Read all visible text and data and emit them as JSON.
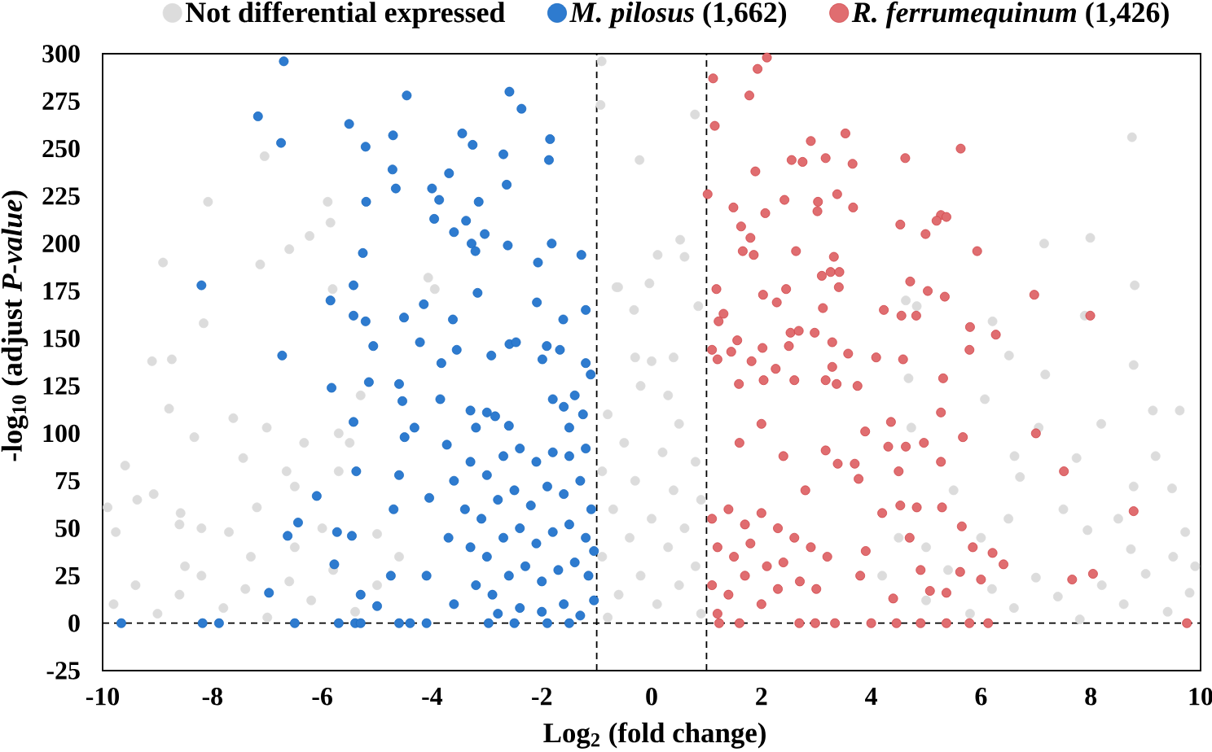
{
  "chart_data": {
    "type": "scatter",
    "xlabel": "Log$_{2}$ (fold change)",
    "ylabel": "-log$_{10}$ (adjust *P-value*)",
    "xlim": [
      -10,
      10
    ],
    "ylim": [
      -25,
      300
    ],
    "xticks": [
      -10,
      -8,
      -6,
      -4,
      -2,
      0,
      2,
      4,
      6,
      8,
      10
    ],
    "yticks": [
      -25,
      0,
      25,
      50,
      75,
      100,
      125,
      150,
      175,
      200,
      225,
      250,
      275,
      300
    ],
    "legend": "top",
    "marker": "circle",
    "ref_lines": [
      {
        "axis": "x",
        "value": -1,
        "line_style": "dashed",
        "color": "#000000"
      },
      {
        "axis": "x",
        "value": 1,
        "line_style": "dashed",
        "color": "#000000"
      },
      {
        "axis": "y",
        "value": 0,
        "line_style": "dashed",
        "color": "#000000"
      }
    ],
    "series": [
      {
        "name": "Not differential expressed",
        "color": "#dcdcdc",
        "x": [
          -0.91,
          -0.93,
          -0.64,
          -7.05,
          -8.08,
          -5.9,
          -5.85,
          -6.23,
          -6.6,
          -7.13,
          -8.9,
          -4.07,
          -3.95,
          -5.81,
          -8.16,
          -9.1,
          -8.74,
          8.75,
          0.79,
          -0.22,
          7.15,
          7.99,
          8.8,
          0.52,
          0.11,
          0.6,
          -0.04,
          -0.61,
          -0.32,
          0.85,
          6.21,
          7.89,
          4.63,
          4.83,
          4.68,
          7.17,
          8.78,
          6.51,
          -0.3,
          0.0,
          0.4,
          -0.2,
          0.3,
          -8.79,
          -7.62,
          -7.01,
          -8.33,
          -6.33,
          -7.44,
          -9.59,
          -6.65,
          -6.5,
          -9.07,
          -9.37,
          -9.91,
          -7.19,
          -8.58,
          -8.6,
          -8.2,
          -7.7,
          -9.76,
          -5.7,
          -5.5,
          -5.7,
          -6.0,
          -5.0,
          -5.3,
          -7.3,
          -8.5,
          -6.5,
          9.13,
          9.62,
          8.19,
          8.78,
          9.48,
          9.18,
          7.74,
          6.61,
          6.71,
          7.05,
          6.07,
          4.73,
          7.94,
          8.73,
          9.72,
          5.5,
          6.5,
          7.5,
          8.5,
          9.5,
          5.0,
          6.0,
          -0.8,
          0.5,
          -0.5,
          0.2,
          0.8,
          -0.9,
          -0.3,
          0.4,
          0.9,
          -0.7,
          0.0,
          0.6,
          -0.4,
          0.3,
          -0.9,
          0.8,
          -0.2,
          0.5,
          -0.6,
          0.1,
          0.9,
          -0.8,
          -9.8,
          -9.4,
          -9.0,
          -8.6,
          -8.2,
          -7.8,
          -7.4,
          -7.0,
          -6.6,
          -6.2,
          -5.8,
          -5.4,
          -5.0,
          -4.6,
          5.0,
          5.4,
          5.8,
          6.2,
          6.6,
          7.0,
          7.4,
          7.8,
          8.2,
          8.6,
          9.0,
          9.4,
          9.8,
          9.9,
          4.5,
          4.2
        ],
        "values": [
          296,
          273,
          177,
          246,
          222,
          222,
          211,
          204,
          197,
          189,
          190,
          182,
          176,
          176,
          158,
          138,
          139,
          256,
          268,
          244,
          200,
          203,
          178,
          202,
          194,
          193,
          179,
          177,
          165,
          167,
          159,
          162,
          170,
          167,
          129,
          131,
          136,
          141,
          140,
          138,
          140,
          125,
          120,
          113,
          108,
          103,
          98,
          95,
          87,
          83,
          80,
          72,
          68,
          65,
          61,
          61,
          58,
          52,
          50,
          48,
          48,
          100,
          95,
          80,
          50,
          47,
          120,
          35,
          30,
          40,
          112,
          112,
          105,
          72,
          71,
          88,
          87,
          88,
          77,
          103,
          118,
          103,
          49,
          39,
          48,
          70,
          55,
          60,
          55,
          35,
          40,
          45,
          110,
          105,
          95,
          90,
          85,
          80,
          75,
          70,
          65,
          60,
          55,
          50,
          45,
          40,
          35,
          30,
          25,
          20,
          15,
          10,
          5,
          3,
          10,
          20,
          5,
          15,
          25,
          8,
          18,
          3,
          22,
          12,
          28,
          6,
          20,
          35,
          12,
          28,
          5,
          18,
          8,
          24,
          14,
          2,
          20,
          10,
          26,
          6,
          16,
          30,
          45,
          25
        ]
      },
      {
        "name": "*M. pilosus* (1,662)",
        "color": "#2e7bcf",
        "x": [
          -6.7,
          -7.17,
          -6.75,
          -4.46,
          -5.51,
          -5.21,
          -4.71,
          -4.72,
          -4.66,
          -5.2,
          -5.26,
          -8.2,
          -5.85,
          -5.43,
          -5.43,
          -5.21,
          -5.07,
          -6.73,
          -4.51,
          -4.15,
          -4.22,
          -4.0,
          -3.87,
          -3.96,
          -3.69,
          -3.45,
          -3.26,
          -2.59,
          -2.37,
          -2.7,
          -1.85,
          -1.87,
          -2.64,
          -3.15,
          -3.38,
          -3.6,
          -3.04,
          -3.28,
          -3.21,
          -2.62,
          -1.82,
          -2.07,
          -1.28,
          -3.17,
          -2.09,
          -3.62,
          -1.61,
          -1.2,
          -2.59,
          -2.47,
          -1.91,
          -1.67,
          -3.55,
          -3.83,
          -2.92,
          -1.99,
          -1.2,
          -1.11,
          -5.83,
          -5.15,
          -4.6,
          -5.43,
          -4.54,
          -3.85,
          -4.32,
          -4.5,
          -3.73,
          -3.3,
          -3.0,
          -3.2,
          -2.85,
          -2.6,
          -1.8,
          -1.6,
          -1.4,
          -1.25,
          -1.5,
          -5.38,
          -6.1,
          -6.44,
          -6.63,
          -5.73,
          -5.46,
          -5.78,
          -6.97,
          -5.3,
          -5.0,
          -4.75,
          -4.6,
          -4.7,
          -4.05,
          -4.1,
          -3.6,
          -9.66,
          -8.18,
          -7.88,
          -6.5,
          -5.7,
          -5.4,
          -5.3,
          -4.6,
          -4.4,
          -4.1,
          -2.97,
          -2.5,
          -1.9,
          -1.5,
          -3.3,
          -3.0,
          -2.7,
          -2.4,
          -2.1,
          -1.8,
          -1.5,
          -1.2,
          -3.4,
          -3.1,
          -2.8,
          -2.5,
          -2.2,
          -1.9,
          -1.6,
          -1.3,
          -1.1,
          -3.3,
          -3.0,
          -2.7,
          -2.4,
          -2.1,
          -1.8,
          -1.5,
          -1.2,
          -1.05,
          -3.2,
          -2.9,
          -2.6,
          -2.3,
          -2.0,
          -1.7,
          -1.4,
          -1.15,
          -1.05,
          -2.8,
          -2.4,
          -2.0,
          -1.6,
          -1.3,
          -3.7,
          -3.6
        ],
        "values": [
          296,
          267,
          253,
          278,
          263,
          251,
          257,
          239,
          229,
          222,
          195,
          178,
          170,
          178,
          162,
          159,
          146,
          141,
          161,
          168,
          148,
          229,
          223,
          213,
          237,
          258,
          252,
          280,
          271,
          247,
          255,
          244,
          231,
          222,
          212,
          206,
          205,
          200,
          196,
          199,
          200,
          190,
          194,
          174,
          169,
          160,
          160,
          165,
          147,
          148,
          146,
          144,
          144,
          137,
          141,
          139,
          137,
          131,
          124,
          127,
          126,
          106,
          117,
          118,
          103,
          98,
          94,
          112,
          111,
          103,
          109,
          104,
          118,
          114,
          120,
          110,
          103,
          80,
          67,
          53,
          46,
          48,
          46,
          31,
          16,
          15,
          9,
          25,
          78,
          60,
          66,
          25,
          10,
          0,
          0,
          0,
          0,
          0,
          0,
          0,
          0,
          0,
          0,
          0,
          0,
          0,
          0,
          85,
          78,
          88,
          92,
          85,
          90,
          88,
          92,
          60,
          55,
          65,
          70,
          62,
          72,
          68,
          75,
          60,
          40,
          35,
          45,
          50,
          42,
          48,
          52,
          45,
          38,
          20,
          15,
          25,
          30,
          22,
          28,
          32,
          25,
          12,
          5,
          8,
          6,
          10,
          4,
          45,
          75
        ]
      },
      {
        "name": "*R. ferrumequinum* (1,426)",
        "color": "#e06d70",
        "x": [
          2.1,
          1.93,
          1.12,
          1.78,
          1.15,
          2.9,
          3.53,
          5.63,
          4.62,
          2.55,
          2.75,
          3.17,
          3.66,
          1.89,
          1.02,
          1.49,
          2.42,
          3.03,
          3.02,
          3.38,
          3.67,
          2.07,
          1.63,
          1.8,
          1.66,
          1.86,
          2.63,
          3.32,
          3.1,
          3.26,
          3.42,
          3.41,
          4.53,
          4.99,
          5.27,
          5.19,
          5.37,
          5.93,
          4.71,
          5.03,
          5.34,
          6.97,
          7.99,
          1.18,
          2.03,
          2.28,
          2.45,
          3.12,
          4.23,
          4.55,
          4.82,
          1.31,
          1.22,
          5.8,
          6.27,
          5.79,
          4.09,
          4.58,
          3.58,
          3.29,
          3.29,
          2.53,
          2.68,
          2.97,
          2.5,
          2.02,
          1.56,
          1.45,
          1.1,
          1.82,
          1.2,
          2.26,
          5.31,
          3.17,
          2.04,
          2.6,
          3.37,
          3.75,
          1.59,
          5.27,
          7.0,
          7.51,
          8.78,
          7.66,
          8.04,
          9.75,
          6.13,
          5.79,
          5.37,
          4.9,
          4.46,
          4.0,
          3.34,
          2.98,
          2.69,
          1.23,
          1.6,
          5.67,
          5.27,
          4.96,
          4.31,
          4.63,
          3.89,
          4.36,
          4.5,
          3.7,
          3.77,
          4.53,
          4.83,
          5.29,
          4.2,
          5.65,
          5.85,
          6.21,
          6.41,
          6.0,
          5.62,
          5.37,
          5.07,
          4.9,
          4.7,
          4.4,
          3.9,
          3.8,
          3.17,
          3.39,
          1.1,
          1.4,
          1.7,
          2.0,
          2.3,
          2.6,
          2.9,
          3.2,
          1.2,
          1.5,
          1.8,
          2.1,
          2.4,
          2.7,
          3.0,
          1.1,
          1.4,
          1.7,
          2.0,
          2.3,
          1.2,
          1.6,
          2.0,
          2.4,
          2.8
        ],
        "values": [
          298,
          292,
          287,
          278,
          262,
          254,
          258,
          250,
          245,
          244,
          243,
          245,
          242,
          238,
          226,
          219,
          223,
          222,
          217,
          226,
          219,
          216,
          209,
          203,
          196,
          194,
          196,
          193,
          183,
          185,
          185,
          177,
          210,
          205,
          215,
          212,
          214,
          196,
          180,
          175,
          172,
          173,
          162,
          176,
          173,
          169,
          176,
          166,
          165,
          162,
          162,
          163,
          159,
          156,
          152,
          144,
          140,
          139,
          142,
          148,
          135,
          153,
          154,
          153,
          146,
          145,
          149,
          143,
          144,
          138,
          139,
          134,
          129,
          128,
          128,
          128,
          126,
          125,
          126,
          111,
          100,
          80,
          59,
          23,
          26,
          0,
          0,
          0,
          0,
          0,
          0,
          0,
          0,
          0,
          0,
          0,
          0,
          98,
          85,
          95,
          93,
          93,
          101,
          106,
          80,
          84,
          76,
          62,
          61,
          61,
          58,
          51,
          40,
          37,
          31,
          23,
          27,
          16,
          17,
          28,
          45,
          13,
          38,
          25,
          91,
          84,
          55,
          60,
          52,
          58,
          50,
          45,
          40,
          35,
          40,
          35,
          42,
          30,
          32,
          22,
          18,
          20,
          15,
          25,
          10,
          18,
          5,
          95,
          105,
          88,
          70
        ]
      }
    ]
  }
}
